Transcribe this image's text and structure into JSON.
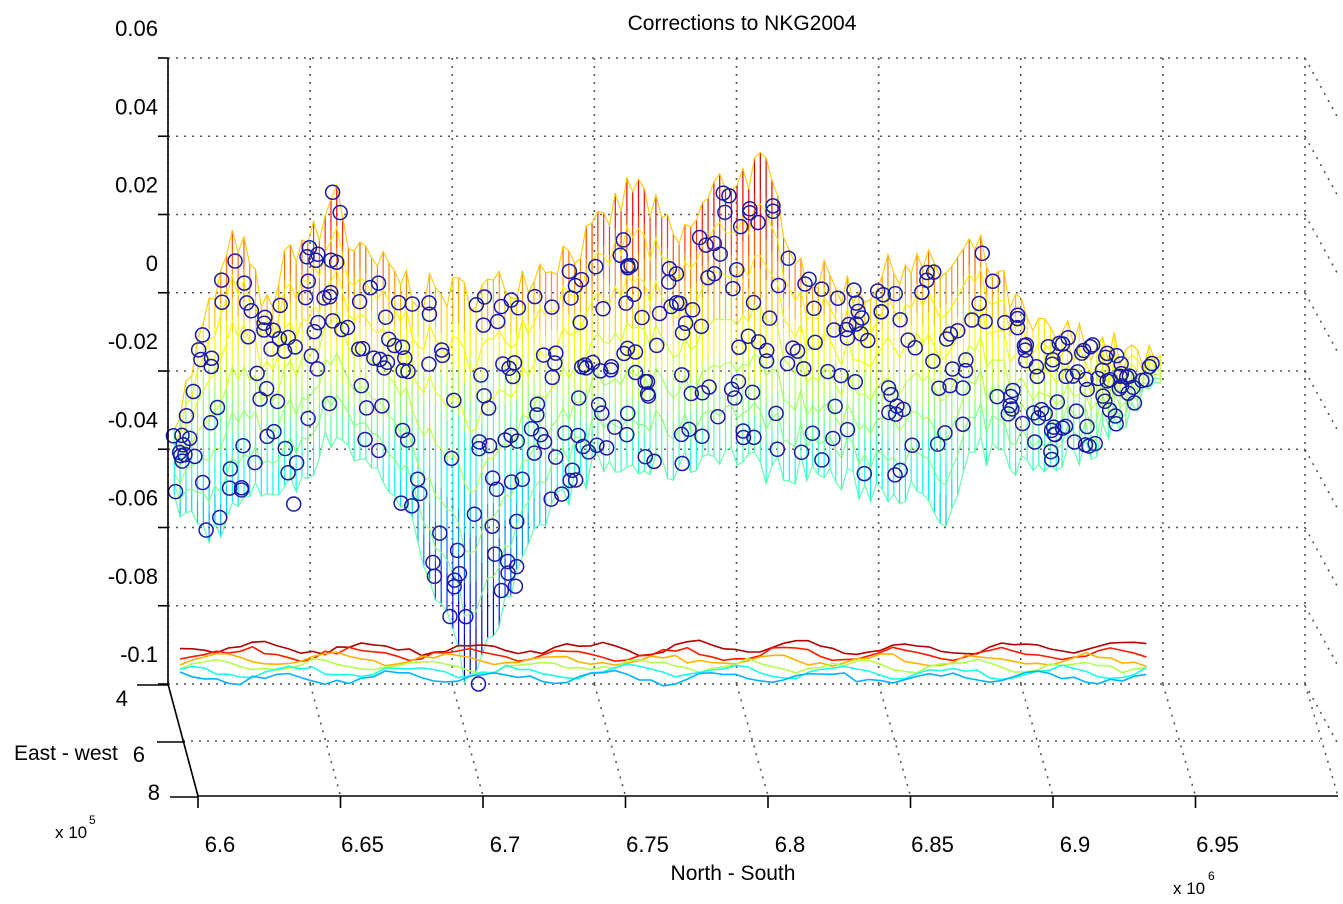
{
  "chart_data": {
    "type": "3d-surface-with-scatter-and-contour",
    "title": "Corrections to NKG2004",
    "xlabel": "North - South",
    "ylabel": "East - west",
    "x_multiplier_label": "x 10",
    "x_multiplier_exponent": "6",
    "y_multiplier_label": "x 10",
    "y_multiplier_exponent": "5",
    "x_ticks": [
      "6.6",
      "6.65",
      "6.7",
      "6.75",
      "6.8",
      "6.85",
      "6.9",
      "6.95"
    ],
    "y_ticks": [
      "4",
      "6",
      "8"
    ],
    "z_ticks": [
      "0.06",
      "0.04",
      "0.02",
      "0",
      "-0.02",
      "-0.04",
      "-0.06",
      "-0.08",
      "-0.1"
    ],
    "xlim": [
      6.6,
      7.0
    ],
    "ylim": [
      4,
      8
    ],
    "zlim": [
      -0.1,
      0.06
    ],
    "grid": true,
    "colormap": "jet",
    "marker_color": "#1a1aa8",
    "surface_profile": [
      {
        "x": 6.6,
        "z_min": -0.055,
        "z_max": -0.03
      },
      {
        "x": 6.61,
        "z_min": -0.062,
        "z_max": -0.005
      },
      {
        "x": 6.62,
        "z_min": -0.055,
        "z_max": 0.015
      },
      {
        "x": 6.63,
        "z_min": -0.05,
        "z_max": -0.005
      },
      {
        "x": 6.64,
        "z_min": -0.05,
        "z_max": 0.012
      },
      {
        "x": 6.65,
        "z_min": -0.04,
        "z_max": 0.015
      },
      {
        "x": 6.655,
        "z_min": -0.035,
        "z_max": 0.029
      },
      {
        "x": 6.66,
        "z_min": -0.04,
        "z_max": 0.01
      },
      {
        "x": 6.675,
        "z_min": -0.05,
        "z_max": 0.005
      },
      {
        "x": 6.685,
        "z_min": -0.065,
        "z_max": 0.0
      },
      {
        "x": 6.7,
        "z_min": -0.098,
        "z_max": 0.0
      },
      {
        "x": 6.715,
        "z_min": -0.08,
        "z_max": 0.002
      },
      {
        "x": 6.73,
        "z_min": -0.055,
        "z_max": 0.008
      },
      {
        "x": 6.745,
        "z_min": -0.045,
        "z_max": 0.014
      },
      {
        "x": 6.76,
        "z_min": -0.045,
        "z_max": 0.028
      },
      {
        "x": 6.775,
        "z_min": -0.045,
        "z_max": 0.012
      },
      {
        "x": 6.79,
        "z_min": -0.04,
        "z_max": 0.028
      },
      {
        "x": 6.805,
        "z_min": -0.045,
        "z_max": 0.032
      },
      {
        "x": 6.82,
        "z_min": -0.045,
        "z_max": 0.005
      },
      {
        "x": 6.84,
        "z_min": -0.05,
        "z_max": 0.0
      },
      {
        "x": 6.855,
        "z_min": -0.05,
        "z_max": 0.008
      },
      {
        "x": 6.87,
        "z_min": -0.06,
        "z_max": 0.005
      },
      {
        "x": 6.88,
        "z_min": -0.04,
        "z_max": 0.012
      },
      {
        "x": 6.9,
        "z_min": -0.045,
        "z_max": -0.01
      },
      {
        "x": 6.92,
        "z_min": -0.04,
        "z_max": -0.012
      },
      {
        "x": 6.94,
        "z_min": -0.025,
        "z_max": -0.018
      }
    ]
  }
}
